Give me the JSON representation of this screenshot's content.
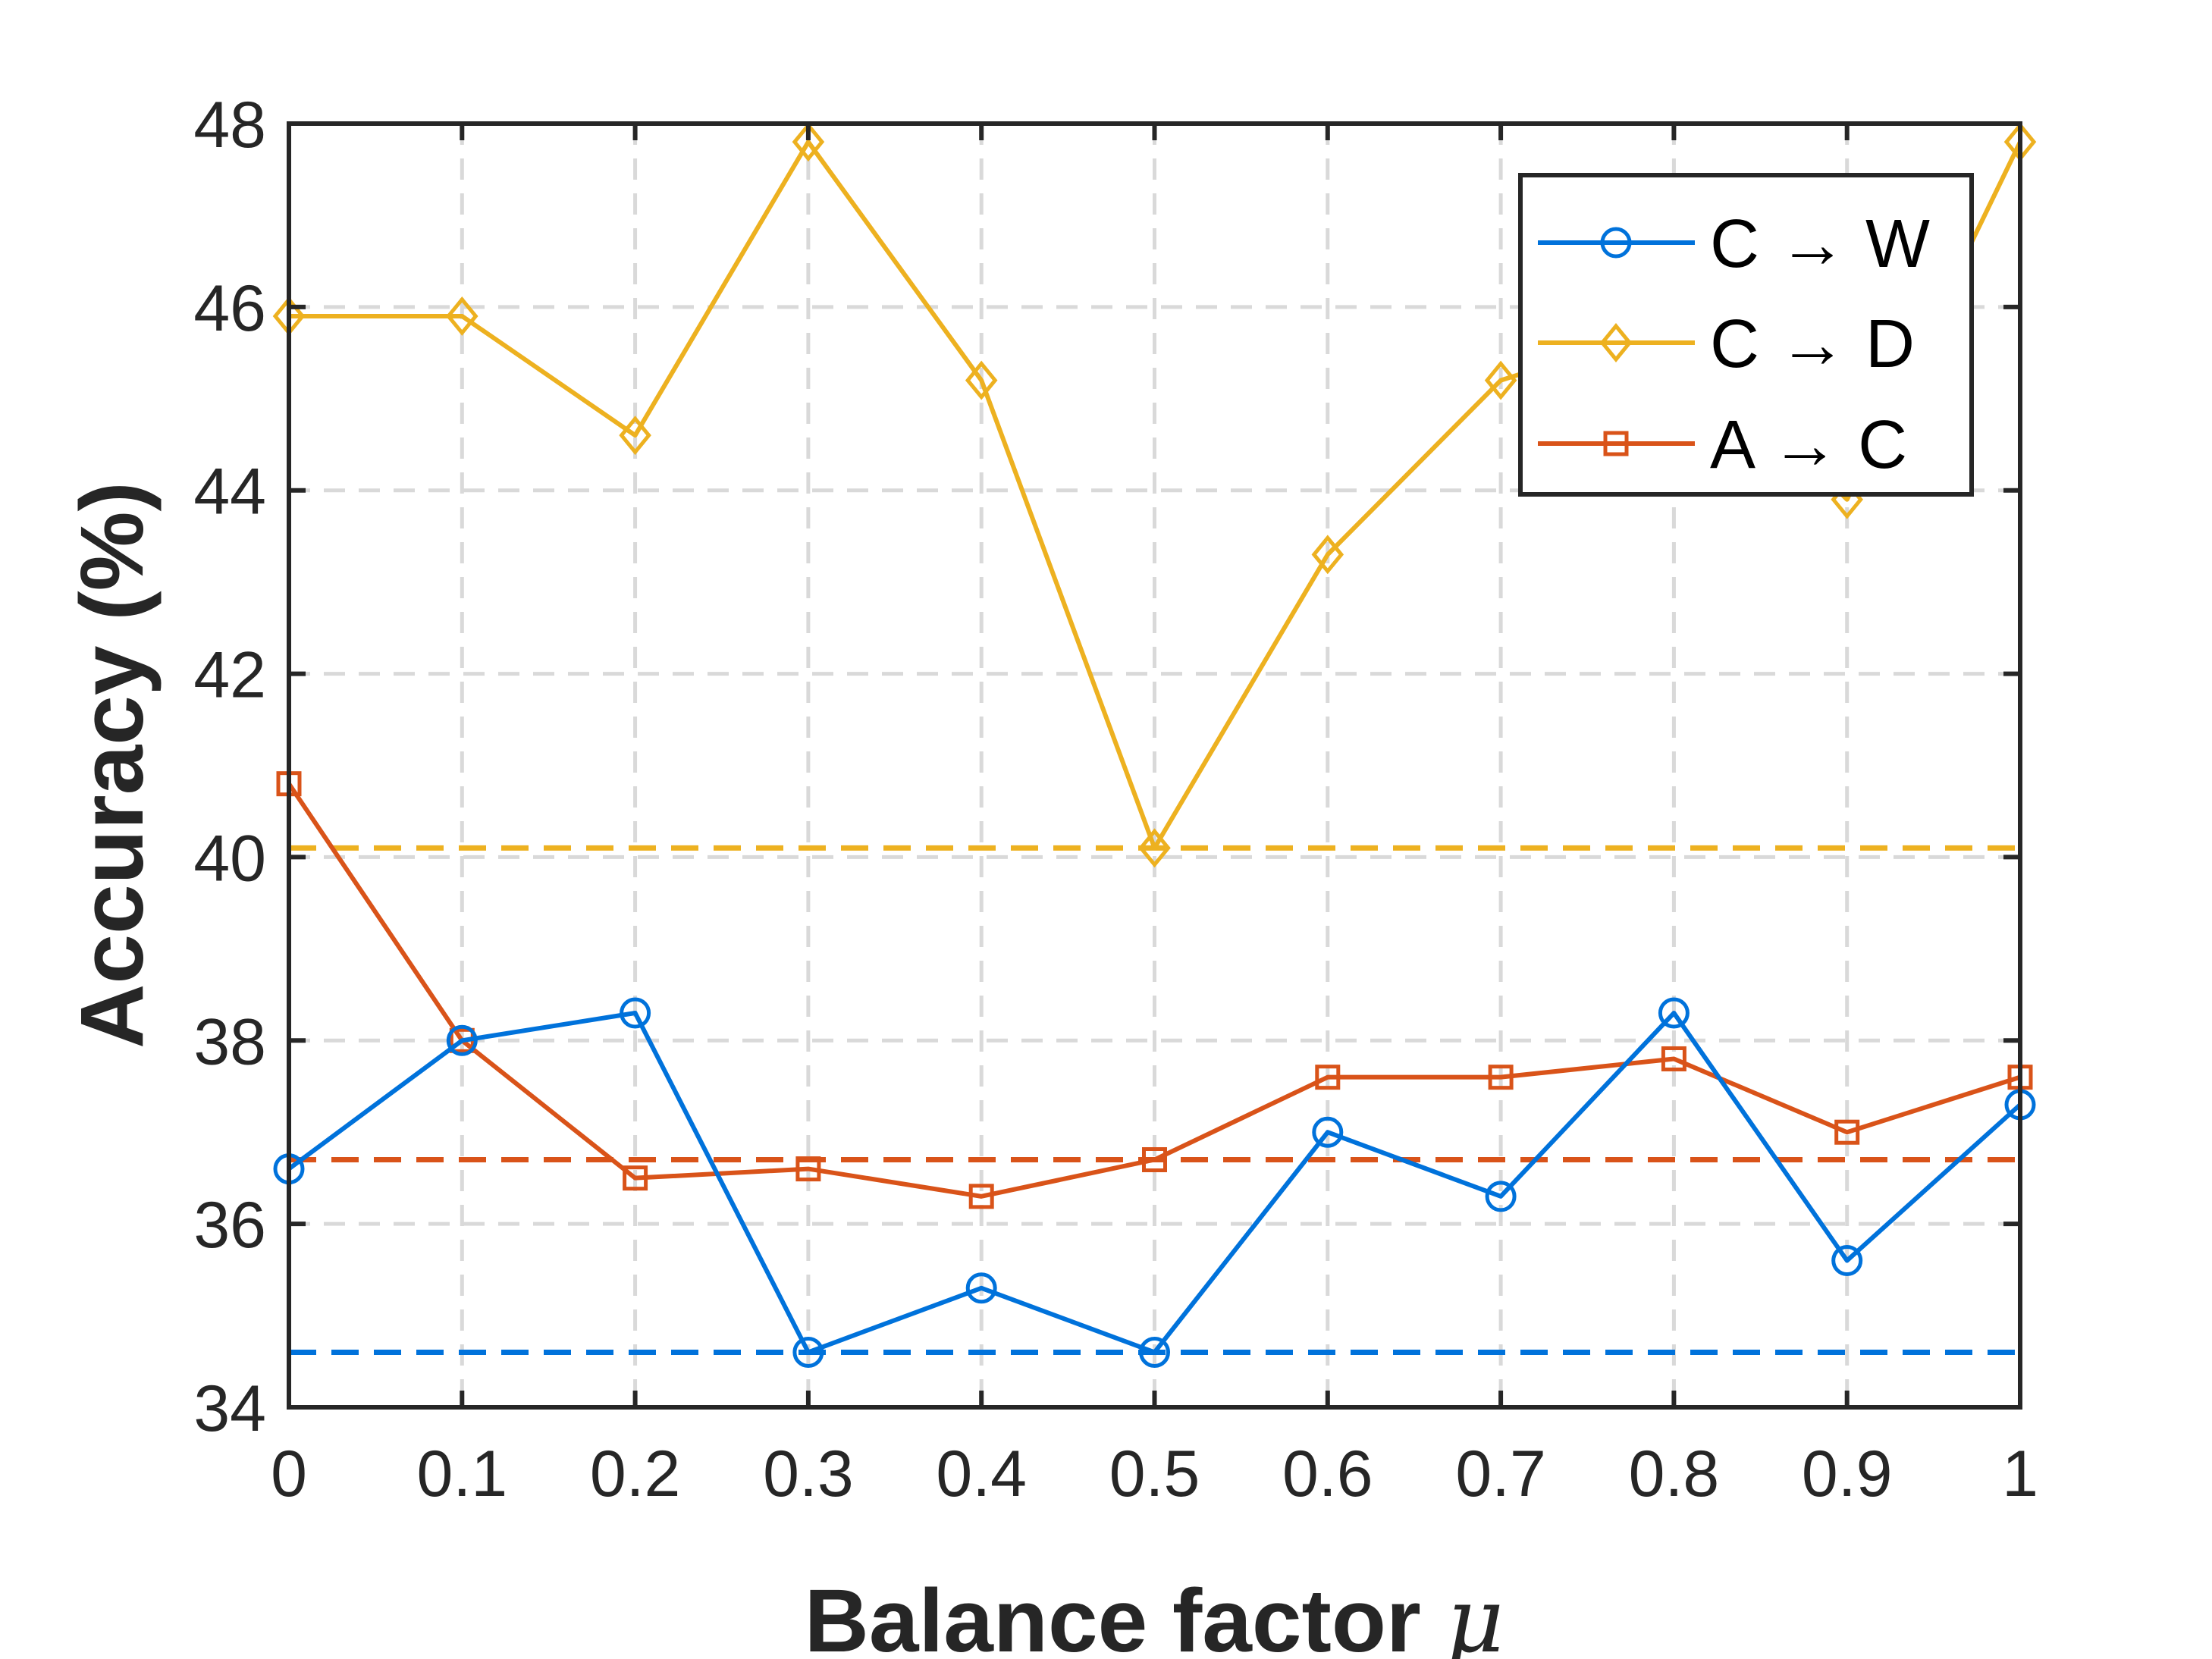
{
  "chart_data": {
    "type": "line",
    "xlabel": "Balance factor",
    "xlabel_symbol": "μ",
    "ylabel": "Accuracy (%)",
    "x": [
      0,
      0.1,
      0.2,
      0.3,
      0.4,
      0.5,
      0.6,
      0.7,
      0.8,
      0.9,
      1
    ],
    "xticks": [
      "0",
      "0.1",
      "0.2",
      "0.3",
      "0.4",
      "0.5",
      "0.6",
      "0.7",
      "0.8",
      "0.9",
      "1"
    ],
    "yticks": [
      "34",
      "36",
      "38",
      "40",
      "42",
      "44",
      "46",
      "48"
    ],
    "xlim": [
      0,
      1
    ],
    "ylim": [
      34,
      48
    ],
    "grid": true,
    "legend_position": "top-right",
    "series": [
      {
        "name": "C → W",
        "color": "#0072DB",
        "marker": "circle",
        "values": [
          36.6,
          38.0,
          38.3,
          34.6,
          35.3,
          34.6,
          37.0,
          36.3,
          38.3,
          35.6,
          37.3
        ]
      },
      {
        "name": "C → D",
        "color": "#EDB120",
        "marker": "diamond",
        "values": [
          45.9,
          45.9,
          44.6,
          47.8,
          45.2,
          40.1,
          43.3,
          45.2,
          45.8,
          43.9,
          47.8
        ]
      },
      {
        "name": "A → C",
        "color": "#D95319",
        "marker": "square",
        "values": [
          40.8,
          38.0,
          36.5,
          36.6,
          36.3,
          36.7,
          37.6,
          37.6,
          37.8,
          37.0,
          37.6
        ]
      }
    ],
    "reference_lines": [
      {
        "color": "#0072DB",
        "value": 34.6
      },
      {
        "color": "#EDB120",
        "value": 40.1
      },
      {
        "color": "#D95319",
        "value": 36.7
      }
    ]
  }
}
